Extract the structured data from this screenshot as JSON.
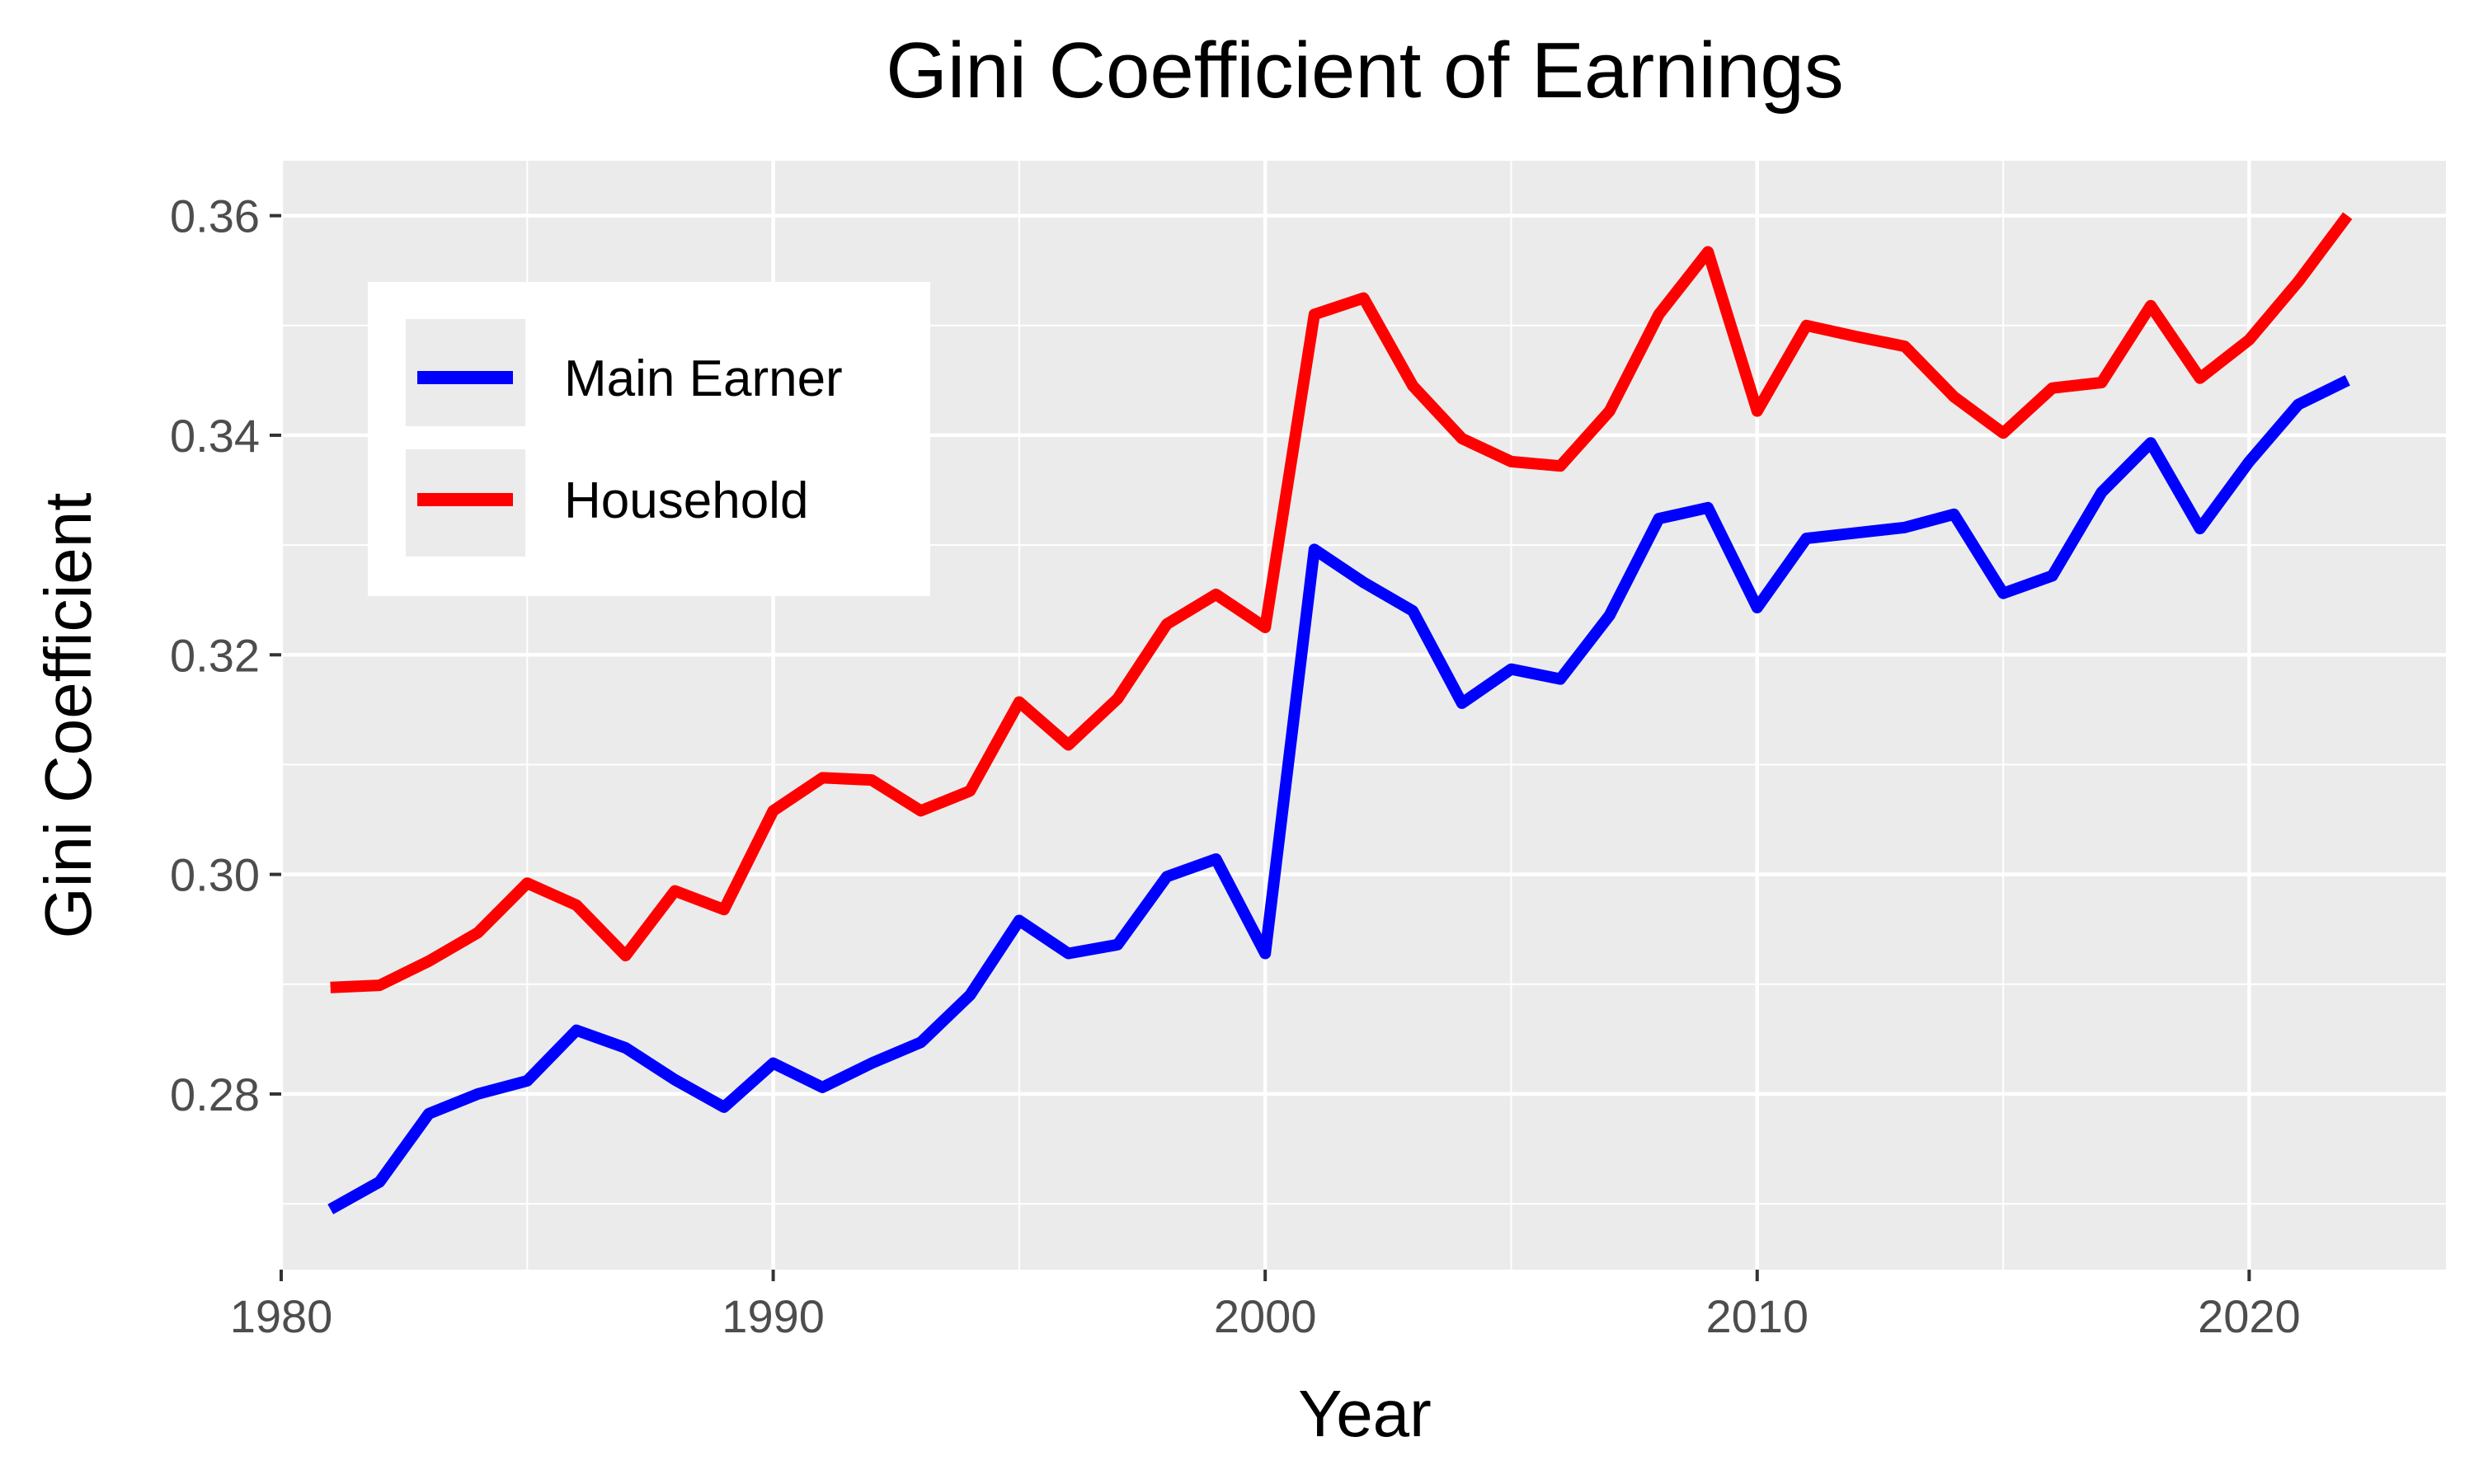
{
  "chart_data": {
    "type": "line",
    "title": "Gini Coefficient of Earnings",
    "xlabel": "Year",
    "ylabel": "Gini Coefficient",
    "xlim": [
      1980,
      2024
    ],
    "ylim": [
      0.264,
      0.365
    ],
    "x_ticks": [
      1980,
      1990,
      2000,
      2010,
      2020
    ],
    "x_tick_labels": [
      "1980",
      "1990",
      "2000",
      "2010",
      "2020"
    ],
    "y_ticks": [
      0.28,
      0.3,
      0.32,
      0.34,
      0.36
    ],
    "y_tick_labels": [
      "0.28",
      "0.30",
      "0.32",
      "0.34",
      "0.36"
    ],
    "grid": true,
    "legend_position": "top-left",
    "x": [
      1981,
      1982,
      1983,
      1984,
      1985,
      1986,
      1987,
      1988,
      1989,
      1990,
      1991,
      1992,
      1993,
      1994,
      1995,
      1996,
      1997,
      1998,
      1999,
      2000,
      2001,
      2002,
      2003,
      2004,
      2005,
      2006,
      2007,
      2008,
      2009,
      2010,
      2011,
      2012,
      2013,
      2014,
      2015,
      2016,
      2017,
      2018,
      2019,
      2020,
      2021,
      2022
    ],
    "series": [
      {
        "name": "Main Earner",
        "color": "#0000ff",
        "values": [
          0.2695,
          0.272,
          0.2782,
          0.28,
          0.2812,
          0.2858,
          0.2842,
          0.2813,
          0.2788,
          0.2828,
          0.2806,
          0.2828,
          0.2847,
          0.289,
          0.2958,
          0.2928,
          0.2936,
          0.2998,
          0.3014,
          0.2928,
          0.3296,
          0.3266,
          0.324,
          0.3156,
          0.3187,
          0.3178,
          0.3236,
          0.3324,
          0.3334,
          0.3243,
          0.3306,
          0.3311,
          0.3316,
          0.3328,
          0.3256,
          0.3272,
          0.3348,
          0.3393,
          0.3315,
          0.3376,
          0.3428,
          0.345
        ]
      },
      {
        "name": "Household",
        "color": "#ff0000",
        "values": [
          0.2897,
          0.2899,
          0.2921,
          0.2947,
          0.2992,
          0.2972,
          0.2926,
          0.2985,
          0.2968,
          0.3058,
          0.3088,
          0.3086,
          0.3058,
          0.3076,
          0.3157,
          0.3118,
          0.316,
          0.3228,
          0.3255,
          0.3225,
          0.351,
          0.3525,
          0.3445,
          0.3397,
          0.3376,
          0.3372,
          0.3422,
          0.351,
          0.3567,
          0.3422,
          0.35,
          0.349,
          0.3481,
          0.3435,
          0.3402,
          0.3443,
          0.3448,
          0.3518,
          0.3452,
          0.3487,
          0.354,
          0.36
        ]
      }
    ]
  }
}
